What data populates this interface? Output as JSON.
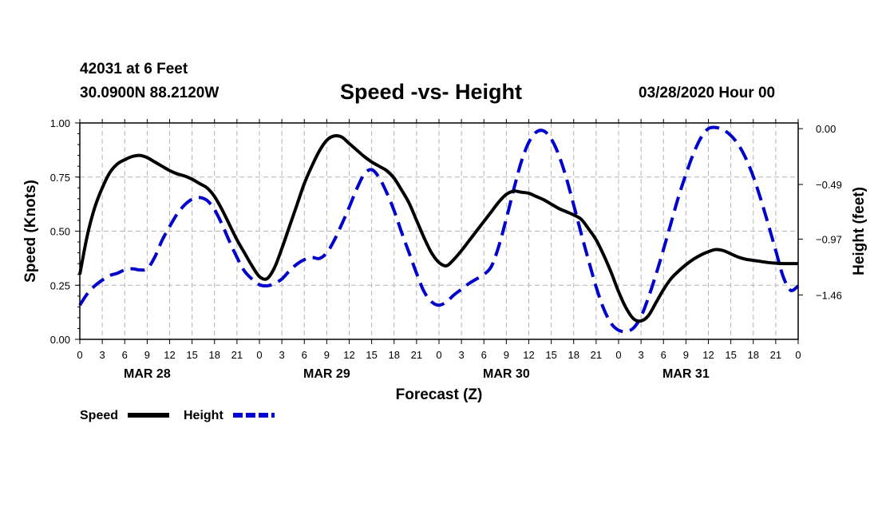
{
  "header": {
    "station": "42031 at 6 Feet",
    "coords": "30.0900N 88.2120W",
    "title": "Speed -vs- Height",
    "run": "03/28/2020 Hour 00"
  },
  "chart_data": {
    "type": "line",
    "title": "Speed -vs- Height",
    "xlabel": "Forecast (Z)",
    "ylabel": "Speed (Knots)",
    "y2label": "Height (feet)",
    "xlim": [
      0,
      96
    ],
    "ylim": [
      0,
      1
    ],
    "y2lim": [
      -1.85,
      0.05
    ],
    "grid": true,
    "x_ticks": [
      0,
      3,
      6,
      9,
      12,
      15,
      18,
      21,
      24,
      27,
      30,
      33,
      36,
      39,
      42,
      45,
      48,
      51,
      54,
      57,
      60,
      63,
      66,
      69,
      72,
      75,
      78,
      81,
      84,
      87,
      90,
      93,
      96
    ],
    "x_tick_labels": [
      "0",
      "3",
      "6",
      "9",
      "12",
      "15",
      "18",
      "21",
      "0",
      "3",
      "6",
      "9",
      "12",
      "15",
      "18",
      "21",
      "0",
      "3",
      "6",
      "9",
      "12",
      "15",
      "18",
      "21",
      "0",
      "3",
      "6",
      "9",
      "12",
      "15",
      "18",
      "21",
      "0"
    ],
    "y_ticks": [
      0.0,
      0.25,
      0.5,
      0.75,
      1.0
    ],
    "y_tick_labels": [
      "0.00",
      "0.25",
      "0.50",
      "0.75",
      "1.00"
    ],
    "y2_ticks": [
      0.0,
      -0.49,
      -0.97,
      -1.46
    ],
    "y2_tick_labels": [
      "0.00",
      "−0.49",
      "−0.97",
      "−1.46"
    ],
    "day_labels": [
      {
        "x": 9,
        "label": "MAR 28"
      },
      {
        "x": 33,
        "label": "MAR 29"
      },
      {
        "x": 57,
        "label": "MAR 30"
      },
      {
        "x": 81,
        "label": "MAR 31"
      }
    ],
    "series": [
      {
        "name": "Speed",
        "axis": "left",
        "color": "#000000",
        "style": "solid",
        "x": [
          0,
          1,
          2,
          3,
          4,
          5,
          6,
          7,
          8,
          9,
          10,
          11,
          12,
          13,
          14,
          15,
          16,
          17,
          18,
          19,
          20,
          21,
          22,
          23,
          24,
          25,
          26,
          27,
          28,
          29,
          30,
          31,
          32,
          33,
          34,
          35,
          36,
          37,
          38,
          39,
          40,
          41,
          42,
          43,
          44,
          45,
          46,
          47,
          48,
          49,
          50,
          51,
          52,
          53,
          54,
          55,
          56,
          57,
          58,
          59,
          60,
          61,
          62,
          63,
          64,
          65,
          66,
          67,
          68,
          69,
          70,
          71,
          72,
          73,
          74,
          75,
          76,
          77,
          78,
          79,
          80,
          81,
          82,
          83,
          84,
          85,
          86,
          87,
          88,
          89,
          90,
          91,
          92,
          93,
          94,
          95,
          96
        ],
        "y": [
          0.3,
          0.48,
          0.61,
          0.7,
          0.77,
          0.81,
          0.83,
          0.845,
          0.85,
          0.84,
          0.82,
          0.8,
          0.78,
          0.765,
          0.755,
          0.74,
          0.72,
          0.7,
          0.66,
          0.6,
          0.53,
          0.46,
          0.4,
          0.34,
          0.29,
          0.28,
          0.33,
          0.42,
          0.52,
          0.62,
          0.72,
          0.8,
          0.87,
          0.92,
          0.94,
          0.935,
          0.905,
          0.875,
          0.845,
          0.82,
          0.8,
          0.78,
          0.745,
          0.69,
          0.63,
          0.55,
          0.47,
          0.4,
          0.355,
          0.34,
          0.37,
          0.41,
          0.455,
          0.5,
          0.545,
          0.59,
          0.635,
          0.67,
          0.685,
          0.68,
          0.675,
          0.66,
          0.645,
          0.625,
          0.605,
          0.59,
          0.575,
          0.555,
          0.51,
          0.46,
          0.39,
          0.31,
          0.22,
          0.145,
          0.095,
          0.085,
          0.11,
          0.17,
          0.23,
          0.28,
          0.315,
          0.345,
          0.37,
          0.39,
          0.405,
          0.415,
          0.41,
          0.395,
          0.38,
          0.37,
          0.365,
          0.36,
          0.355,
          0.352,
          0.35,
          0.35,
          0.35
        ]
      },
      {
        "name": "Height",
        "axis": "right",
        "color": "#0000cc",
        "style": "dashed",
        "x": [
          0,
          1,
          2,
          3,
          4,
          5,
          6,
          7,
          8,
          9,
          10,
          11,
          12,
          13,
          14,
          15,
          16,
          17,
          18,
          19,
          20,
          21,
          22,
          23,
          24,
          25,
          26,
          27,
          28,
          29,
          30,
          31,
          32,
          33,
          34,
          35,
          36,
          37,
          38,
          39,
          40,
          41,
          42,
          43,
          44,
          45,
          46,
          47,
          48,
          49,
          50,
          51,
          52,
          53,
          54,
          55,
          56,
          57,
          58,
          59,
          60,
          61,
          62,
          63,
          64,
          65,
          66,
          67,
          68,
          69,
          70,
          71,
          72,
          73,
          74,
          75,
          76,
          77,
          78,
          79,
          80,
          81,
          82,
          83,
          84,
          85,
          86,
          87,
          88,
          89,
          90,
          91,
          92,
          93,
          94,
          95,
          96
        ],
        "y": [
          -1.55,
          -1.45,
          -1.38,
          -1.33,
          -1.29,
          -1.27,
          -1.24,
          -1.23,
          -1.24,
          -1.23,
          -1.13,
          -0.98,
          -0.86,
          -0.75,
          -0.67,
          -0.62,
          -0.605,
          -0.63,
          -0.71,
          -0.84,
          -0.99,
          -1.13,
          -1.25,
          -1.32,
          -1.37,
          -1.38,
          -1.36,
          -1.32,
          -1.25,
          -1.19,
          -1.15,
          -1.13,
          -1.14,
          -1.09,
          -0.98,
          -0.84,
          -0.69,
          -0.53,
          -0.4,
          -0.36,
          -0.43,
          -0.56,
          -0.72,
          -0.91,
          -1.09,
          -1.27,
          -1.43,
          -1.52,
          -1.55,
          -1.52,
          -1.46,
          -1.41,
          -1.36,
          -1.32,
          -1.28,
          -1.21,
          -1.03,
          -0.79,
          -0.53,
          -0.29,
          -0.12,
          -0.03,
          -0.02,
          -0.09,
          -0.23,
          -0.43,
          -0.67,
          -0.92,
          -1.16,
          -1.39,
          -1.58,
          -1.71,
          -1.77,
          -1.78,
          -1.75,
          -1.65,
          -1.48,
          -1.28,
          -1.06,
          -0.83,
          -0.6,
          -0.4,
          -0.22,
          -0.08,
          0.0,
          0.01,
          -0.01,
          -0.06,
          -0.14,
          -0.26,
          -0.42,
          -0.62,
          -0.84,
          -1.07,
          -1.3,
          -1.42,
          -1.38
        ]
      }
    ],
    "legend": {
      "position": "bottom-left",
      "entries": [
        {
          "label": "Speed",
          "color": "#000000",
          "style": "solid"
        },
        {
          "label": "Height",
          "color": "#0000cc",
          "style": "dashed"
        }
      ]
    }
  }
}
